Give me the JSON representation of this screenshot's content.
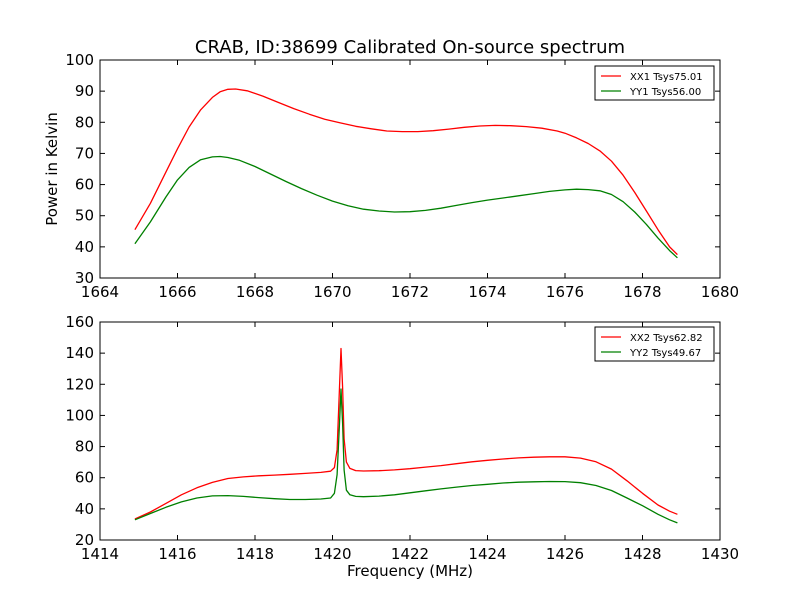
{
  "title": "CRAB, ID:38699 Calibrated On-source spectrum",
  "colors": {
    "xx": "#ff0000",
    "yy": "#008000",
    "axis": "#000000"
  },
  "chart_data": [
    {
      "type": "line",
      "title": "CRAB, ID:38699 Calibrated On-source spectrum",
      "xlabel": "",
      "ylabel": "Power in Kelvin",
      "xlim": [
        1664,
        1680
      ],
      "ylim": [
        30,
        100
      ],
      "xticks": [
        "1664",
        "1666",
        "1668",
        "1670",
        "1672",
        "1674",
        "1676",
        "1678",
        "1680"
      ],
      "yticks": [
        "30",
        "40",
        "50",
        "60",
        "70",
        "80",
        "90",
        "100"
      ],
      "grid": false,
      "legend": "top-right",
      "series": [
        {
          "name": "XX1 Tsys75.01",
          "color": "#ff0000",
          "x": [
            1664.9,
            1665.3,
            1665.7,
            1666.0,
            1666.3,
            1666.6,
            1666.9,
            1667.1,
            1667.3,
            1667.5,
            1667.8,
            1668.2,
            1668.6,
            1669.0,
            1669.4,
            1669.8,
            1670.2,
            1670.6,
            1671.0,
            1671.4,
            1671.8,
            1672.2,
            1672.6,
            1673.0,
            1673.4,
            1673.8,
            1674.2,
            1674.6,
            1675.0,
            1675.4,
            1675.8,
            1676.0,
            1676.3,
            1676.6,
            1676.9,
            1677.2,
            1677.5,
            1677.8,
            1678.1,
            1678.4,
            1678.7,
            1678.9
          ],
          "y": [
            45.5,
            54.0,
            64.0,
            71.5,
            78.5,
            84.0,
            88.0,
            89.8,
            90.6,
            90.7,
            90.1,
            88.4,
            86.4,
            84.4,
            82.6,
            81.0,
            79.8,
            78.7,
            77.9,
            77.2,
            77.0,
            77.0,
            77.3,
            77.8,
            78.4,
            78.8,
            79.0,
            78.9,
            78.6,
            78.1,
            77.2,
            76.5,
            75.0,
            73.2,
            70.8,
            67.5,
            63.0,
            57.5,
            51.5,
            45.5,
            40.0,
            37.5
          ]
        },
        {
          "name": "YY1 Tsys56.00",
          "color": "#008000",
          "x": [
            1664.9,
            1665.3,
            1665.7,
            1666.0,
            1666.3,
            1666.6,
            1666.9,
            1667.1,
            1667.3,
            1667.6,
            1668.0,
            1668.4,
            1668.8,
            1669.2,
            1669.6,
            1670.0,
            1670.4,
            1670.8,
            1671.2,
            1671.6,
            1672.0,
            1672.4,
            1672.8,
            1673.2,
            1673.6,
            1674.0,
            1674.4,
            1674.8,
            1675.2,
            1675.6,
            1676.0,
            1676.3,
            1676.6,
            1676.9,
            1677.2,
            1677.5,
            1677.8,
            1678.1,
            1678.4,
            1678.7,
            1678.9
          ],
          "y": [
            41.0,
            48.0,
            56.0,
            61.5,
            65.5,
            68.0,
            68.9,
            69.0,
            68.7,
            67.8,
            65.8,
            63.4,
            61.0,
            58.7,
            56.6,
            54.7,
            53.2,
            52.1,
            51.5,
            51.2,
            51.3,
            51.7,
            52.4,
            53.3,
            54.2,
            55.0,
            55.7,
            56.4,
            57.1,
            57.8,
            58.3,
            58.5,
            58.4,
            58.0,
            56.8,
            54.5,
            51.2,
            47.2,
            42.8,
            38.8,
            36.5
          ]
        }
      ]
    },
    {
      "type": "line",
      "title": "",
      "xlabel": "Frequency (MHz)",
      "ylabel": "",
      "xlim": [
        1414,
        1430
      ],
      "ylim": [
        20,
        160
      ],
      "xticks": [
        "1414",
        "1416",
        "1418",
        "1420",
        "1422",
        "1424",
        "1426",
        "1428",
        "1430"
      ],
      "yticks": [
        "20",
        "40",
        "60",
        "80",
        "100",
        "120",
        "140",
        "160"
      ],
      "grid": false,
      "legend": "top-right",
      "series": [
        {
          "name": "XX2 Tsys62.82",
          "color": "#ff0000",
          "x": [
            1414.9,
            1415.3,
            1415.7,
            1416.1,
            1416.5,
            1416.9,
            1417.3,
            1417.7,
            1418.1,
            1418.5,
            1418.9,
            1419.3,
            1419.7,
            1419.95,
            1420.05,
            1420.12,
            1420.18,
            1420.22,
            1420.26,
            1420.3,
            1420.36,
            1420.45,
            1420.6,
            1420.8,
            1421.2,
            1421.6,
            1422.0,
            1422.4,
            1422.8,
            1423.2,
            1423.6,
            1424.0,
            1424.4,
            1424.8,
            1425.2,
            1425.6,
            1426.0,
            1426.4,
            1426.8,
            1427.2,
            1427.6,
            1428.0,
            1428.4,
            1428.7,
            1428.9
          ],
          "y": [
            33.5,
            38.0,
            43.5,
            49.0,
            53.5,
            57.0,
            59.5,
            60.5,
            61.2,
            61.7,
            62.2,
            62.8,
            63.4,
            64.2,
            66.5,
            78.0,
            118.0,
            143.0,
            118.0,
            85.0,
            70.0,
            66.0,
            64.6,
            64.3,
            64.5,
            65.0,
            65.8,
            66.8,
            67.8,
            69.0,
            70.2,
            71.2,
            72.0,
            72.7,
            73.2,
            73.4,
            73.4,
            72.6,
            70.2,
            65.5,
            58.0,
            50.0,
            42.5,
            38.5,
            36.5
          ]
        },
        {
          "name": "YY2 Tsys49.67",
          "color": "#008000",
          "x": [
            1414.9,
            1415.3,
            1415.7,
            1416.1,
            1416.5,
            1416.9,
            1417.3,
            1417.7,
            1418.1,
            1418.5,
            1418.9,
            1419.3,
            1419.7,
            1419.95,
            1420.05,
            1420.12,
            1420.18,
            1420.22,
            1420.26,
            1420.3,
            1420.36,
            1420.45,
            1420.6,
            1420.8,
            1421.2,
            1421.6,
            1422.0,
            1422.4,
            1422.8,
            1423.2,
            1423.6,
            1424.0,
            1424.4,
            1424.8,
            1425.2,
            1425.6,
            1426.0,
            1426.4,
            1426.8,
            1427.2,
            1427.6,
            1428.0,
            1428.4,
            1428.7,
            1428.9
          ],
          "y": [
            33.0,
            37.0,
            41.0,
            44.5,
            47.0,
            48.3,
            48.5,
            48.0,
            47.2,
            46.5,
            46.0,
            46.0,
            46.3,
            47.0,
            50.0,
            62.0,
            95.0,
            117.0,
            95.0,
            65.0,
            52.0,
            49.0,
            48.0,
            47.8,
            48.2,
            49.0,
            50.3,
            51.6,
            52.8,
            54.0,
            55.0,
            55.8,
            56.6,
            57.1,
            57.4,
            57.6,
            57.5,
            56.8,
            55.0,
            51.8,
            47.0,
            42.0,
            36.5,
            33.0,
            31.0
          ]
        }
      ]
    }
  ]
}
